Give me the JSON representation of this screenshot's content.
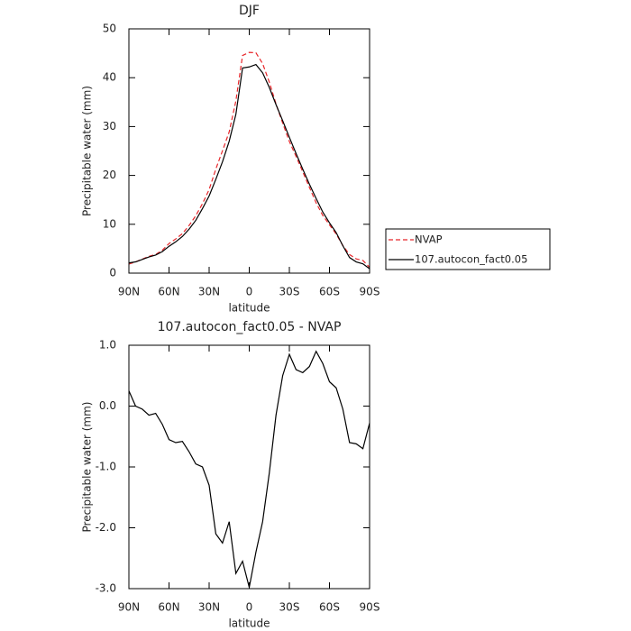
{
  "chart_data": [
    {
      "type": "line",
      "title": "DJF",
      "xlabel": "latitude",
      "ylabel": "Precipitable water (mm)",
      "x": [
        90,
        85,
        80,
        75,
        70,
        65,
        60,
        55,
        50,
        45,
        40,
        35,
        30,
        25,
        20,
        15,
        10,
        5,
        0,
        -5,
        -10,
        -15,
        -20,
        -25,
        -30,
        -35,
        -40,
        -45,
        -50,
        -55,
        -60,
        -65,
        -70,
        -75,
        -80,
        -85,
        -90
      ],
      "xlim": [
        90,
        -90
      ],
      "xticks": [
        {
          "value": 90,
          "label": "90N"
        },
        {
          "value": 60,
          "label": "60N"
        },
        {
          "value": 30,
          "label": "30N"
        },
        0,
        {
          "value": -30,
          "label": "30S"
        },
        {
          "value": -60,
          "label": "60S"
        },
        {
          "value": -90,
          "label": "90S"
        }
      ],
      "ylim": [
        0,
        50
      ],
      "yticks": [
        0,
        10,
        20,
        30,
        40,
        50
      ],
      "legend": "right",
      "series": [
        {
          "name": "NVAP",
          "color": "#e8262a",
          "linestyle": "dashed",
          "values": [
            1.85,
            2.3,
            2.85,
            3.45,
            3.82,
            4.7,
            6.05,
            7.0,
            8.08,
            9.75,
            11.75,
            14.2,
            17.1,
            21.3,
            25.05,
            28.9,
            35.25,
            44.55,
            45.18,
            45.1,
            42.9,
            39.1,
            34.65,
            30.7,
            26.95,
            23.9,
            20.75,
            17.55,
            14.4,
            11.8,
            9.9,
            8.0,
            5.65,
            3.8,
            2.92,
            2.6,
            1.18
          ]
        },
        {
          "name": "107.autocon_fact0.05",
          "color": "#000000",
          "linestyle": "solid",
          "values": [
            2.1,
            2.3,
            2.8,
            3.3,
            3.7,
            4.4,
            5.5,
            6.4,
            7.5,
            9.0,
            10.8,
            13.2,
            15.8,
            19.2,
            22.8,
            27.0,
            32.5,
            42.0,
            42.2,
            42.7,
            41.0,
            38.0,
            34.5,
            31.2,
            27.8,
            24.5,
            21.3,
            18.2,
            15.3,
            12.5,
            10.3,
            8.3,
            5.6,
            3.2,
            2.3,
            1.9,
            0.9
          ]
        }
      ]
    },
    {
      "type": "line",
      "title": "107.autocon_fact0.05 - NVAP",
      "xlabel": "latitude",
      "ylabel": "Precipitable water (mm)",
      "x": [
        90,
        85,
        80,
        75,
        70,
        65,
        60,
        55,
        50,
        45,
        40,
        35,
        30,
        25,
        20,
        15,
        10,
        5,
        0,
        -5,
        -10,
        -15,
        -20,
        -25,
        -30,
        -35,
        -40,
        -45,
        -50,
        -55,
        -60,
        -65,
        -70,
        -75,
        -80,
        -85,
        -90
      ],
      "xlim": [
        90,
        -90
      ],
      "xticks": [
        {
          "value": 90,
          "label": "90N"
        },
        {
          "value": 60,
          "label": "60N"
        },
        {
          "value": 30,
          "label": "30N"
        },
        0,
        {
          "value": -30,
          "label": "30S"
        },
        {
          "value": -60,
          "label": "60S"
        },
        {
          "value": -90,
          "label": "90S"
        }
      ],
      "ylim": [
        -3,
        1
      ],
      "yticks": [
        {
          "value": -3,
          "label": "-3.0"
        },
        {
          "value": -2,
          "label": "-2.0"
        },
        {
          "value": -1,
          "label": "-1.0"
        },
        {
          "value": 0,
          "label": "0.0"
        },
        {
          "value": 1,
          "label": "1.0"
        }
      ],
      "series": [
        {
          "color": "#000000",
          "linestyle": "solid",
          "values": [
            0.25,
            0.0,
            -0.05,
            -0.15,
            -0.12,
            -0.3,
            -0.55,
            -0.6,
            -0.58,
            -0.75,
            -0.95,
            -1.0,
            -1.3,
            -2.1,
            -2.25,
            -1.9,
            -2.75,
            -2.55,
            -2.98,
            -2.4,
            -1.9,
            -1.1,
            -0.15,
            0.5,
            0.85,
            0.6,
            0.55,
            0.65,
            0.9,
            0.7,
            0.4,
            0.3,
            -0.05,
            -0.6,
            -0.62,
            -0.7,
            -0.28
          ]
        }
      ]
    }
  ]
}
